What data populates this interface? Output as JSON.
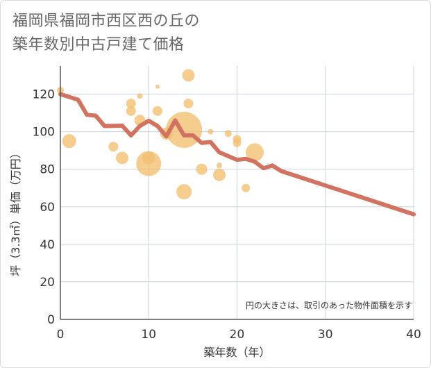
{
  "title_line1": "福岡県福岡市西区西の丘の",
  "title_line2": "築年数別中古戸建て価格",
  "note": "円の大きさは、取引のあった物件面積を示す",
  "colors": {
    "line": "#d27361",
    "bubble": "#f1bf6f",
    "grid": "#c9d3df",
    "axis": "#555555"
  },
  "chart_data": {
    "type": "scatter",
    "xlabel": "築年数（年）",
    "ylabel": "坪（3.3㎡）単価（万円）",
    "xlim": [
      0,
      40
    ],
    "ylim": [
      0,
      135
    ],
    "xticks": [
      0,
      10,
      20,
      30,
      40
    ],
    "yticks": [
      0,
      20,
      40,
      60,
      80,
      100,
      120
    ],
    "grid": true,
    "bubbles": [
      {
        "x": 0,
        "y": 122,
        "r": 5
      },
      {
        "x": 1,
        "y": 95,
        "r": 10
      },
      {
        "x": 6,
        "y": 92,
        "r": 7
      },
      {
        "x": 7,
        "y": 86,
        "r": 9
      },
      {
        "x": 8,
        "y": 115,
        "r": 7
      },
      {
        "x": 8,
        "y": 111,
        "r": 7
      },
      {
        "x": 9,
        "y": 119,
        "r": 4
      },
      {
        "x": 9,
        "y": 106,
        "r": 8
      },
      {
        "x": 10,
        "y": 86,
        "r": 9
      },
      {
        "x": 10,
        "y": 83,
        "r": 18
      },
      {
        "x": 11,
        "y": 124,
        "r": 3
      },
      {
        "x": 11,
        "y": 111,
        "r": 7
      },
      {
        "x": 12,
        "y": 99,
        "r": 9
      },
      {
        "x": 14,
        "y": 101,
        "r": 26
      },
      {
        "x": 14,
        "y": 68,
        "r": 11
      },
      {
        "x": 14.5,
        "y": 130,
        "r": 9
      },
      {
        "x": 14.5,
        "y": 115,
        "r": 7
      },
      {
        "x": 16,
        "y": 80,
        "r": 8
      },
      {
        "x": 17,
        "y": 100,
        "r": 4
      },
      {
        "x": 18,
        "y": 82,
        "r": 4
      },
      {
        "x": 18,
        "y": 77,
        "r": 9
      },
      {
        "x": 19,
        "y": 99,
        "r": 5
      },
      {
        "x": 20,
        "y": 96,
        "r": 6
      },
      {
        "x": 20,
        "y": 94,
        "r": 6
      },
      {
        "x": 21,
        "y": 70,
        "r": 6
      },
      {
        "x": 22,
        "y": 89,
        "r": 13
      }
    ],
    "line": [
      {
        "x": 0,
        "y": 120
      },
      {
        "x": 2,
        "y": 117
      },
      {
        "x": 3,
        "y": 109
      },
      {
        "x": 4,
        "y": 108.5
      },
      {
        "x": 5,
        "y": 103
      },
      {
        "x": 7,
        "y": 103.2
      },
      {
        "x": 8,
        "y": 98
      },
      {
        "x": 9,
        "y": 103
      },
      {
        "x": 10,
        "y": 105.8
      },
      {
        "x": 11,
        "y": 103
      },
      {
        "x": 12,
        "y": 97.5
      },
      {
        "x": 13,
        "y": 106
      },
      {
        "x": 14,
        "y": 98
      },
      {
        "x": 15,
        "y": 98
      },
      {
        "x": 16,
        "y": 94
      },
      {
        "x": 17,
        "y": 94.5
      },
      {
        "x": 18,
        "y": 89
      },
      {
        "x": 20,
        "y": 85
      },
      {
        "x": 21,
        "y": 85.5
      },
      {
        "x": 22,
        "y": 84
      },
      {
        "x": 23,
        "y": 80.5
      },
      {
        "x": 24,
        "y": 82
      },
      {
        "x": 25,
        "y": 79
      },
      {
        "x": 40,
        "y": 56
      }
    ]
  }
}
